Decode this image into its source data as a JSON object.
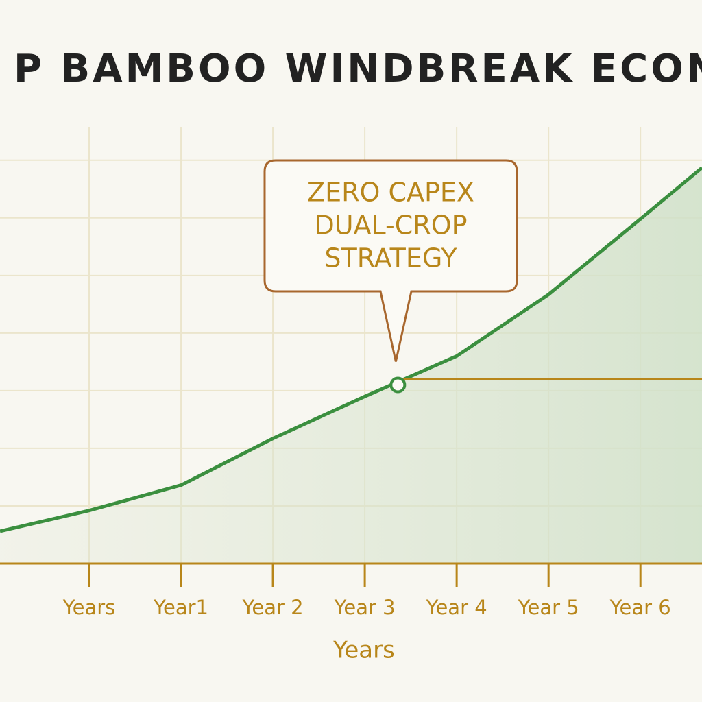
{
  "chart_data": {
    "type": "line",
    "title": "P BAMBOO WINDBREAK ECONOMI",
    "x_label": "Years",
    "xlim": [
      -0.97,
      6.67
    ],
    "xticks": [
      {
        "value": 0,
        "label": "Years"
      },
      {
        "value": 1,
        "label": "Year1"
      },
      {
        "value": 2,
        "label": "Year 2"
      },
      {
        "value": 3,
        "label": "Year 3"
      },
      {
        "value": 4,
        "label": "Year 4"
      },
      {
        "value": 5,
        "label": "Year 5"
      },
      {
        "value": 6,
        "label": "Year 6"
      }
    ],
    "ylim": [
      0,
      7.58
    ],
    "yticks": [
      0,
      1,
      2,
      3,
      4,
      5,
      6,
      7
    ],
    "grid": true,
    "series": [
      {
        "color": "#3b8f3f",
        "x": [
          -0.97,
          0,
          1,
          2,
          3,
          4,
          5,
          6,
          6.67
        ],
        "values": [
          0.56,
          0.92,
          1.36,
          2.17,
          2.9,
          3.6,
          4.67,
          5.98,
          6.87
        ]
      }
    ],
    "annotation": {
      "lines": [
        "ZERO CAPEX",
        "DUAL-CROP",
        "STRATEGY"
      ],
      "x": 3.36,
      "y": 3.1,
      "color": "#b8861a"
    }
  }
}
